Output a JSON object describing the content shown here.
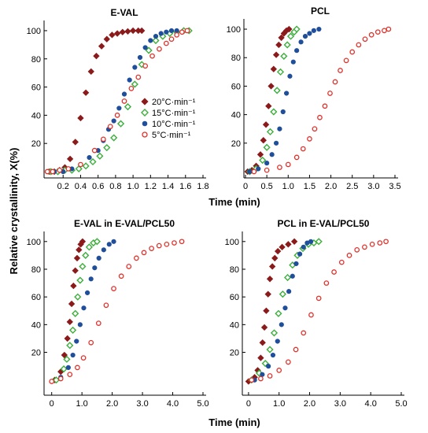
{
  "figure": {
    "shared_ylabel": "Relative crystallinity, X(%)",
    "shared_xlabel_top": "Time (min)",
    "shared_xlabel_bottom": "Time (min)"
  },
  "colors": {
    "20": "#8B1A1A",
    "15": "#3CAF3C",
    "10": "#1F4E9A",
    "5": "#E0302A"
  },
  "chart_data": [
    {
      "type": "scatter",
      "title": "E-VAL",
      "xlabel": "",
      "ylabel": "Relative crystallinity, X(%)",
      "xlim": [
        0,
        1.8
      ],
      "ylim": [
        0,
        105
      ],
      "xticks": [
        "0.2",
        "0.4",
        "0.6",
        "0.8",
        "1.0",
        "1.2",
        "1.4",
        "1.6",
        "1.8"
      ],
      "yticks": [
        "20",
        "40",
        "60",
        "80",
        "100"
      ],
      "legend": {
        "position": "center-right",
        "entries": [
          "20°C·min⁻¹",
          "15°C·min⁻¹",
          "10°C·min⁻¹",
          "5°C·min⁻¹"
        ]
      },
      "series": [
        {
          "name": "20°C·min⁻¹",
          "rate": "20",
          "marker": "diamond-filled",
          "x": [
            0.04,
            0.1,
            0.16,
            0.22,
            0.28,
            0.34,
            0.4,
            0.46,
            0.52,
            0.58,
            0.64,
            0.7,
            0.76,
            0.82,
            0.88,
            0.94,
            1.0,
            1.06,
            1.1
          ],
          "y": [
            0,
            0,
            1,
            3,
            9,
            21,
            38,
            56,
            71,
            82,
            89,
            94,
            97,
            98,
            99,
            99.5,
            100,
            100,
            100
          ]
        },
        {
          "name": "15°C·min⁻¹",
          "rate": "15",
          "marker": "diamond-open",
          "x": [
            0.06,
            0.14,
            0.22,
            0.3,
            0.38,
            0.46,
            0.54,
            0.62,
            0.7,
            0.78,
            0.86,
            0.94,
            1.02,
            1.1,
            1.18,
            1.26,
            1.34,
            1.42,
            1.5,
            1.58,
            1.64
          ],
          "y": [
            0,
            0,
            1,
            1,
            2,
            4,
            7,
            11,
            17,
            24,
            34,
            46,
            62,
            76,
            86,
            93,
            96,
            98,
            99,
            100,
            100
          ]
        },
        {
          "name": "10°C·min⁻¹",
          "rate": "10",
          "marker": "circle-filled",
          "x": [
            0.1,
            0.2,
            0.3,
            0.4,
            0.5,
            0.6,
            0.66,
            0.72,
            0.78,
            0.84,
            0.9,
            0.96,
            1.02,
            1.08,
            1.14,
            1.2,
            1.26,
            1.32,
            1.38,
            1.44,
            1.5
          ],
          "y": [
            0,
            0,
            2,
            5,
            10,
            15,
            22,
            30,
            36,
            45,
            55,
            65,
            74,
            81,
            88,
            93,
            96,
            98,
            99,
            100,
            100
          ]
        },
        {
          "name": "5°C·min⁻¹",
          "rate": "5",
          "marker": "circle-open",
          "x": [
            0.02,
            0.08,
            0.16,
            0.26,
            0.4,
            0.56,
            0.66,
            0.74,
            0.82,
            0.9,
            0.98,
            1.06,
            1.14,
            1.22,
            1.3,
            1.38,
            1.44,
            1.5,
            1.56,
            1.62
          ],
          "y": [
            0,
            0,
            1,
            2,
            5,
            15,
            23,
            32,
            40,
            50,
            59,
            67,
            75,
            82,
            87,
            91,
            94,
            97,
            99,
            100
          ]
        }
      ]
    },
    {
      "type": "scatter",
      "title": "PCL",
      "xlabel": "Time (min)",
      "ylabel": "",
      "xlim": [
        0,
        3.5
      ],
      "ylim": [
        0,
        105
      ],
      "xticks": [
        "0",
        "0.5",
        "1.0",
        "1.5",
        "2.0",
        "2.5",
        "3.0",
        "3.5"
      ],
      "yticks": [
        "20",
        "40",
        "60",
        "80",
        "100"
      ],
      "series": [
        {
          "name": "20°C·min⁻¹",
          "rate": "20",
          "marker": "diamond-filled",
          "x": [
            0.05,
            0.15,
            0.25,
            0.35,
            0.42,
            0.48,
            0.54,
            0.6,
            0.66,
            0.72,
            0.78,
            0.84,
            0.9,
            0.96,
            1.02
          ],
          "y": [
            0,
            1,
            4,
            12,
            22,
            33,
            46,
            60,
            72,
            82,
            89,
            94,
            97,
            99,
            100
          ]
        },
        {
          "name": "15°C·min⁻¹",
          "rate": "15",
          "marker": "diamond-open",
          "x": [
            0.1,
            0.25,
            0.4,
            0.5,
            0.58,
            0.66,
            0.74,
            0.82,
            0.9,
            0.98,
            1.06,
            1.14,
            1.2
          ],
          "y": [
            0,
            2,
            8,
            17,
            28,
            42,
            57,
            70,
            81,
            89,
            95,
            98,
            100
          ]
        },
        {
          "name": "10°C·min⁻¹",
          "rate": "10",
          "marker": "circle-filled",
          "x": [
            0.1,
            0.3,
            0.5,
            0.62,
            0.72,
            0.8,
            0.88,
            0.96,
            1.04,
            1.12,
            1.2,
            1.3,
            1.4,
            1.5,
            1.6,
            1.72
          ],
          "y": [
            0,
            2,
            6,
            12,
            20,
            30,
            42,
            55,
            67,
            77,
            85,
            91,
            95,
            97,
            99,
            100
          ]
        },
        {
          "name": "5°C·min⁻¹",
          "rate": "5",
          "marker": "circle-open",
          "x": [
            0.2,
            0.5,
            0.8,
            1.0,
            1.2,
            1.35,
            1.5,
            1.62,
            1.74,
            1.86,
            1.98,
            2.1,
            2.22,
            2.36,
            2.5,
            2.65,
            2.8,
            2.95,
            3.1,
            3.25,
            3.35
          ],
          "y": [
            0,
            1,
            3,
            5,
            10,
            16,
            23,
            30,
            38,
            46,
            55,
            63,
            71,
            78,
            84,
            89,
            93,
            96,
            98,
            99,
            100
          ]
        }
      ]
    },
    {
      "type": "scatter",
      "title": "E-VAL in E-VAL/PCL50",
      "xlabel": "",
      "ylabel": "",
      "xlim": [
        -0.2,
        5.0
      ],
      "ylim": [
        -3,
        105
      ],
      "xticks": [
        "0",
        "1.0",
        "2.0",
        "3.0",
        "4.0",
        "5.0"
      ],
      "yticks": [
        "20",
        "40",
        "60",
        "80",
        "100"
      ],
      "series": [
        {
          "name": "20°C·min⁻¹",
          "rate": "20",
          "marker": "diamond-filled",
          "x": [
            0.1,
            0.3,
            0.42,
            0.52,
            0.6,
            0.66,
            0.72,
            0.78,
            0.84,
            0.9,
            0.96,
            1.02
          ],
          "y": [
            0,
            6,
            18,
            30,
            42,
            55,
            68,
            79,
            88,
            94,
            98,
            100
          ]
        },
        {
          "name": "15°C·min⁻¹",
          "rate": "15",
          "marker": "diamond-open",
          "x": [
            0.15,
            0.4,
            0.5,
            0.6,
            0.7,
            0.78,
            0.86,
            0.94,
            1.02,
            1.12,
            1.24,
            1.38,
            1.5
          ],
          "y": [
            0,
            8,
            15,
            25,
            36,
            48,
            60,
            72,
            82,
            90,
            96,
            99,
            100
          ]
        },
        {
          "name": "10°C·min⁻¹",
          "rate": "10",
          "marker": "circle-filled",
          "x": [
            0.3,
            0.55,
            0.7,
            0.82,
            0.94,
            1.06,
            1.18,
            1.3,
            1.42,
            1.56,
            1.72,
            1.9,
            2.05
          ],
          "y": [
            2,
            9,
            18,
            28,
            40,
            52,
            63,
            73,
            81,
            88,
            94,
            98,
            100
          ]
        },
        {
          "name": "5°C·min⁻¹",
          "rate": "5",
          "marker": "circle-open",
          "x": [
            0.0,
            0.3,
            0.6,
            0.85,
            1.05,
            1.3,
            1.55,
            1.8,
            2.05,
            2.3,
            2.55,
            2.8,
            3.05,
            3.3,
            3.55,
            3.8,
            4.05,
            4.3
          ],
          "y": [
            -1,
            1,
            4,
            9,
            16,
            27,
            41,
            54,
            66,
            75,
            82,
            88,
            92,
            95,
            97,
            98,
            99,
            100
          ]
        }
      ]
    },
    {
      "type": "scatter",
      "title": "PCL in E-VAL/PCL50",
      "xlabel": "Time (min)",
      "ylabel": "",
      "xlim": [
        -0.1,
        5.0
      ],
      "ylim": [
        -3,
        105
      ],
      "xticks": [
        "0",
        "1.0",
        "2.0",
        "3.0",
        "4.0",
        "5.0"
      ],
      "yticks": [
        "20",
        "40",
        "60",
        "80",
        "100"
      ],
      "series": [
        {
          "name": "20°C·min⁻¹",
          "rate": "20",
          "marker": "diamond-filled",
          "x": [
            0.0,
            0.2,
            0.3,
            0.4,
            0.46,
            0.52,
            0.58,
            0.64,
            0.7,
            0.78,
            0.86,
            0.96,
            1.1,
            1.3,
            1.5
          ],
          "y": [
            -1,
            2,
            7,
            16,
            27,
            38,
            50,
            62,
            73,
            82,
            88,
            93,
            96,
            98,
            100
          ]
        },
        {
          "name": "15°C·min⁻¹",
          "rate": "15",
          "marker": "diamond-open",
          "x": [
            0.1,
            0.35,
            0.55,
            0.7,
            0.84,
            0.98,
            1.12,
            1.28,
            1.44,
            1.6,
            1.78,
            1.96,
            2.14,
            2.3
          ],
          "y": [
            0,
            5,
            12,
            22,
            34,
            48,
            62,
            74,
            83,
            90,
            95,
            98,
            99,
            100
          ]
        },
        {
          "name": "10°C·min⁻¹",
          "rate": "10",
          "marker": "circle-filled",
          "x": [
            0.2,
            0.45,
            0.65,
            0.8,
            0.95,
            1.08,
            1.2,
            1.32,
            1.44,
            1.56,
            1.68,
            1.8,
            1.92,
            2.04
          ],
          "y": [
            0,
            4,
            10,
            18,
            28,
            40,
            52,
            64,
            75,
            84,
            91,
            96,
            99,
            100
          ]
        },
        {
          "name": "5°C·min⁻¹",
          "rate": "5",
          "marker": "circle-open",
          "x": [
            0.1,
            0.4,
            0.7,
            1.0,
            1.3,
            1.55,
            1.8,
            2.05,
            2.3,
            2.55,
            2.8,
            3.05,
            3.3,
            3.55,
            3.8,
            4.05,
            4.3,
            4.5
          ],
          "y": [
            0,
            1,
            3,
            7,
            13,
            22,
            34,
            47,
            59,
            70,
            78,
            85,
            90,
            94,
            96,
            98,
            99,
            100
          ]
        }
      ]
    }
  ]
}
